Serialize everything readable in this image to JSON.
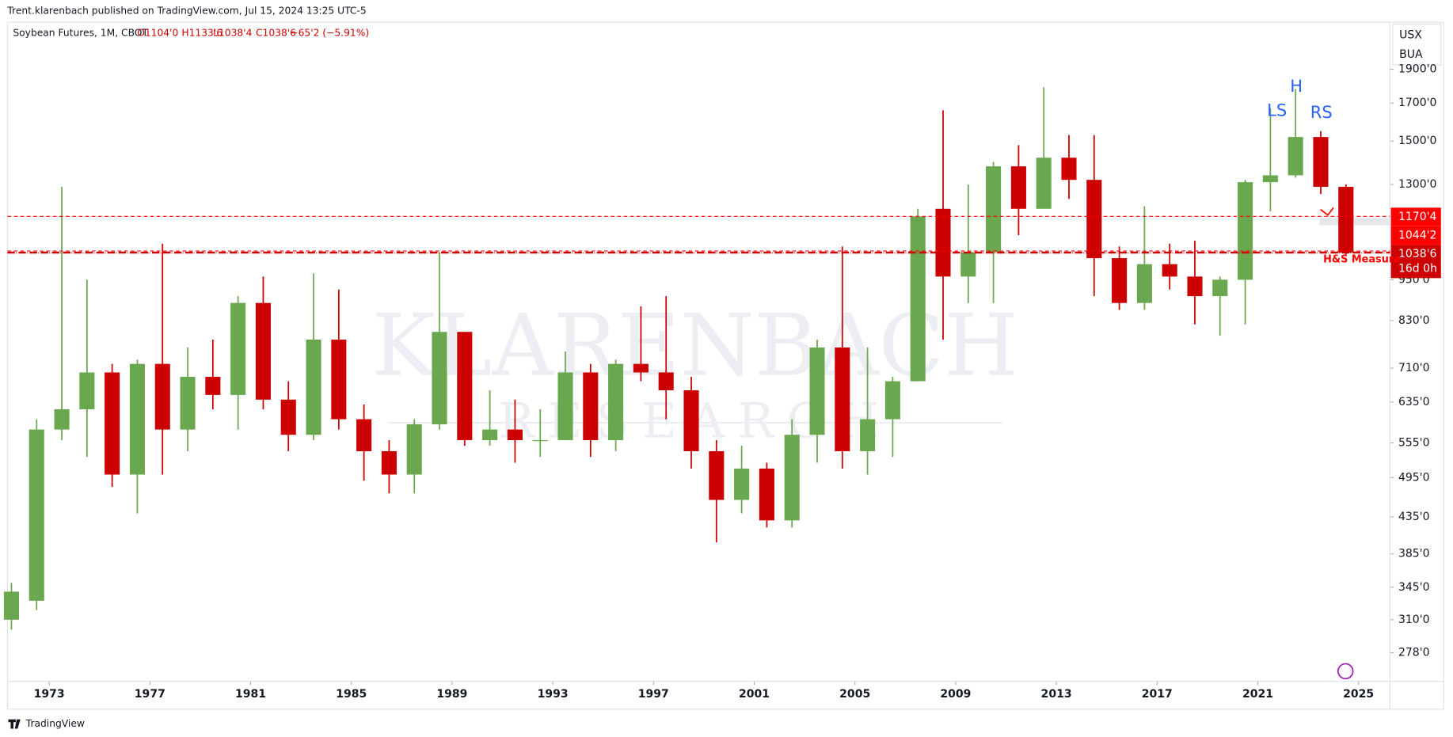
{
  "header": {
    "publisher": "Trent.klarenbach published on TradingView.com, Jul 15, 2024 13:25 UTC-5"
  },
  "toolbar": {
    "buttons": [
      "USX",
      "BUA"
    ]
  },
  "footer": {
    "brand": "TradingView"
  },
  "legend": {
    "symbol": "Soybean Futures, 1M, CBOT",
    "open": "O1104'0",
    "high": "H1133'6",
    "low": "L1038'4",
    "close": "C1038'6",
    "change": "−65'2 (−5.91%)"
  },
  "chart_data": {
    "type": "candlestick",
    "log_scale": true,
    "grid": false,
    "up_color": "#6aa84f",
    "down_color": "#cc0000",
    "x": [
      1971,
      1972,
      1973,
      1974,
      1975,
      1976,
      1977,
      1978,
      1979,
      1980,
      1981,
      1982,
      1983,
      1984,
      1985,
      1986,
      1987,
      1988,
      1989,
      1990,
      1991,
      1992,
      1993,
      1994,
      1995,
      1996,
      1997,
      1998,
      1999,
      2000,
      2001,
      2002,
      2003,
      2004,
      2005,
      2006,
      2007,
      2008,
      2009,
      2010,
      2011,
      2012,
      2013,
      2014,
      2015,
      2016,
      2017,
      2018,
      2019,
      2020,
      2021,
      2022,
      2023,
      2024
    ],
    "open": [
      310,
      330,
      580,
      620,
      700,
      500,
      720,
      580,
      690,
      650,
      880,
      640,
      570,
      780,
      600,
      540,
      500,
      590,
      800,
      560,
      580,
      560,
      560,
      700,
      560,
      720,
      700,
      660,
      540,
      460,
      510,
      430,
      570,
      760,
      540,
      600,
      680,
      1200,
      960,
      1040,
      1380,
      1200,
      1420,
      1320,
      1020,
      880,
      1000,
      960,
      900,
      950,
      1310,
      1340,
      1520,
      1290
    ],
    "high": [
      350,
      600,
      1290,
      950,
      720,
      730,
      1070,
      760,
      780,
      900,
      960,
      680,
      970,
      920,
      630,
      560,
      600,
      1040,
      800,
      660,
      640,
      620,
      750,
      720,
      730,
      870,
      900,
      690,
      560,
      550,
      520,
      600,
      780,
      1060,
      760,
      690,
      1200,
      1660,
      1300,
      1400,
      1480,
      1790,
      1530,
      1530,
      1060,
      1210,
      1070,
      1080,
      960,
      1320,
      1670,
      1780,
      1550,
      1300
    ],
    "low": [
      300,
      320,
      560,
      530,
      480,
      440,
      500,
      540,
      620,
      580,
      620,
      540,
      560,
      580,
      490,
      470,
      470,
      580,
      550,
      550,
      520,
      530,
      560,
      530,
      540,
      680,
      600,
      510,
      400,
      440,
      420,
      420,
      520,
      510,
      500,
      530,
      680,
      780,
      880,
      880,
      1100,
      1200,
      1240,
      900,
      860,
      860,
      920,
      820,
      790,
      820,
      1190,
      1330,
      1260,
      1030
    ],
    "close": [
      340,
      580,
      620,
      700,
      500,
      720,
      580,
      690,
      650,
      880,
      640,
      570,
      780,
      600,
      540,
      500,
      590,
      800,
      560,
      580,
      560,
      560,
      700,
      560,
      720,
      700,
      660,
      540,
      460,
      510,
      430,
      570,
      760,
      540,
      600,
      680,
      1170,
      960,
      1040,
      1380,
      1200,
      1420,
      1320,
      1020,
      880,
      1000,
      960,
      900,
      950,
      1310,
      1340,
      1520,
      1290,
      1038.75
    ],
    "xlim": [
      1971.34,
      2026.25
    ],
    "xticks": [
      1973,
      1977,
      1981,
      1985,
      1989,
      1993,
      1997,
      2001,
      2005,
      2009,
      2013,
      2017,
      2021,
      2025
    ],
    "ylim": [
      253,
      2205
    ],
    "yticks": [
      {
        "value": 278,
        "label": "278'0"
      },
      {
        "value": 310,
        "label": "310'0"
      },
      {
        "value": 345,
        "label": "345'0"
      },
      {
        "value": 385,
        "label": "385'0"
      },
      {
        "value": 435,
        "label": "435'0"
      },
      {
        "value": 495,
        "label": "495'0"
      },
      {
        "value": 555,
        "label": "555'0"
      },
      {
        "value": 635,
        "label": "635'0"
      },
      {
        "value": 710,
        "label": "710'0"
      },
      {
        "value": 830,
        "label": "830'0"
      },
      {
        "value": 950,
        "label": "950'0"
      },
      {
        "value": 1300,
        "label": "1300'0"
      },
      {
        "value": 1500,
        "label": "1500'0"
      },
      {
        "value": 1700,
        "label": "1700'0"
      },
      {
        "value": 1900,
        "label": "1900'0"
      }
    ],
    "price_lines": [
      {
        "value": 1170.5,
        "label": "1170'4",
        "color": "#ff0000"
      },
      {
        "value": 1044.25,
        "label": "1044'2",
        "color": "#ff0000"
      },
      {
        "value": 1038.75,
        "label": "1038'6",
        "sub": "16d 0h",
        "color": "#cc0000"
      }
    ],
    "annotations": [
      "LS",
      "H",
      "RS",
      "H&S Measure"
    ],
    "watermark": [
      "KLARENBACH",
      "RESEARCH"
    ]
  }
}
